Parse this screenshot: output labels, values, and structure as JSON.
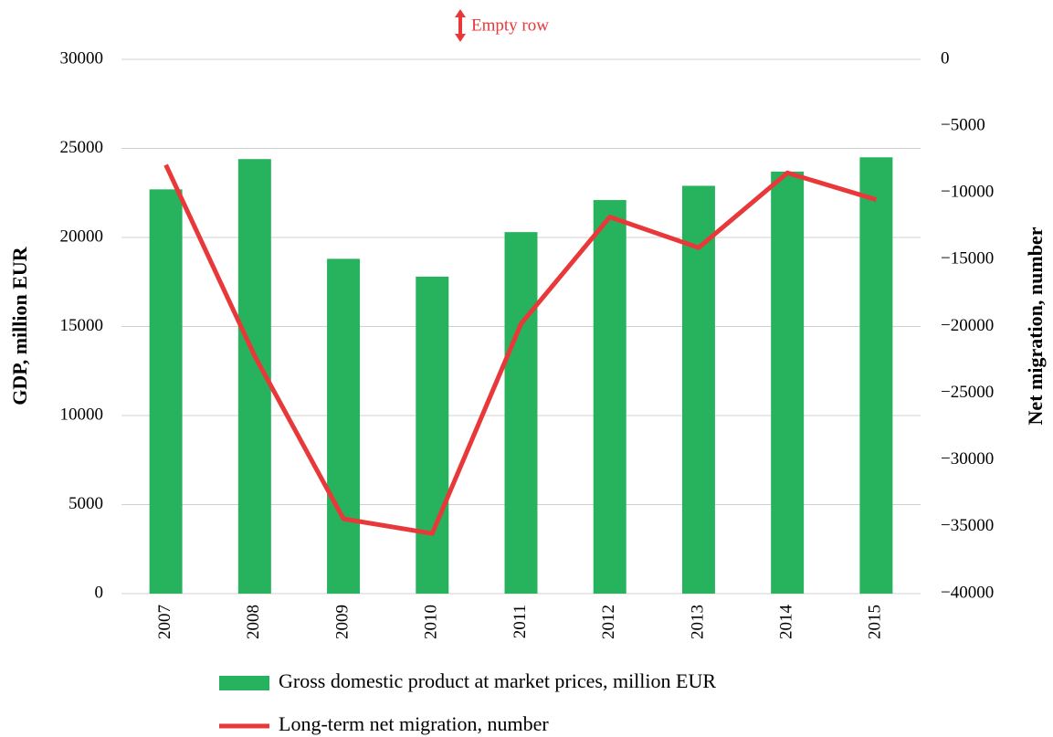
{
  "chart_data": {
    "type": "bar_line",
    "annotation": "Empty row",
    "ylabel": "GDP, million EUR",
    "y2label": "Net migration, number",
    "categories": [
      "2007",
      "2008",
      "2009",
      "2010",
      "2011",
      "2012",
      "2013",
      "2014",
      "2015"
    ],
    "series": [
      {
        "name": "Gross domestic product at market prices, million EUR",
        "type": "bar",
        "color": "#27b35e",
        "values": [
          22700,
          24400,
          18800,
          17800,
          20300,
          22100,
          22900,
          23700,
          24500
        ]
      },
      {
        "name": "Long-term net migration, number",
        "type": "line",
        "axis": "y2",
        "color": "#e8383a",
        "values": [
          -7900,
          -22200,
          -34400,
          -35500,
          -19800,
          -11800,
          -14100,
          -8500,
          -10500
        ]
      }
    ],
    "ylim": [
      0,
      30000
    ],
    "yticks": [
      0,
      5000,
      10000,
      15000,
      20000,
      25000,
      30000
    ],
    "y2lim": [
      -40000,
      0
    ],
    "y2ticks": [
      {
        "value": -40000,
        "label": "−40000"
      },
      {
        "value": -35000,
        "label": "−35000"
      },
      {
        "value": -30000,
        "label": "−30000"
      },
      {
        "value": -25000,
        "label": "−25000"
      },
      {
        "value": -20000,
        "label": "−20000"
      },
      {
        "value": -15000,
        "label": "−15000"
      },
      {
        "value": -10000,
        "label": "−10000"
      },
      {
        "value": -5000,
        "label": "−5000"
      },
      0
    ],
    "grid": true
  }
}
